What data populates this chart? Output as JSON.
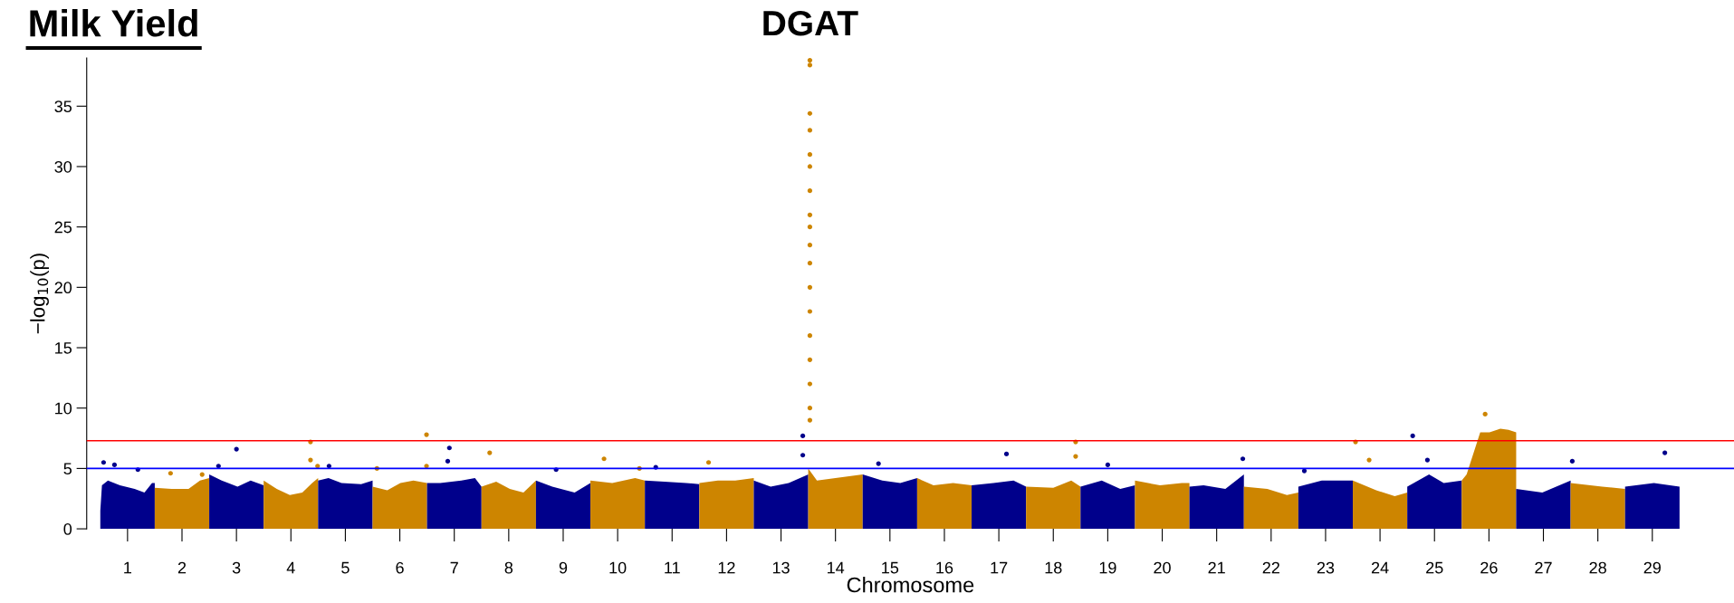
{
  "chart_data": {
    "type": "area",
    "title": "Milk Yield",
    "xlabel": "Chromosome",
    "ylabel": "−log$_{10}$(p)",
    "annotations": [
      {
        "text": "DGAT",
        "x": 13.53,
        "y": 38.8
      }
    ],
    "xlim": [
      0.25,
      30.5
    ],
    "ylim": [
      0,
      39
    ],
    "yticks": [
      0,
      5,
      10,
      15,
      20,
      25,
      30,
      35
    ],
    "xticks": [
      1,
      2,
      3,
      4,
      5,
      6,
      7,
      8,
      9,
      10,
      11,
      12,
      13,
      14,
      15,
      16,
      17,
      18,
      19,
      20,
      21,
      22,
      23,
      24,
      25,
      26,
      27,
      28,
      29
    ],
    "grid": false,
    "ref_lines": [
      {
        "axis": "y",
        "value": 7.3,
        "color": "#ff0000"
      },
      {
        "axis": "y",
        "value": 5,
        "color": "#0000ff"
      }
    ],
    "series": [
      {
        "color": "#00008b",
        "x": [
          0.5,
          0.53,
          0.64,
          0.86,
          1.13,
          1.31,
          1.45,
          1.5
        ],
        "values": [
          1.5,
          3.6,
          4.0,
          3.6,
          3.3,
          3.0,
          3.8,
          3.8
        ]
      },
      {
        "color": "#cd8500",
        "x": [
          1.5,
          1.81,
          2.12,
          2.33,
          2.5
        ],
        "values": [
          3.4,
          3.3,
          3.3,
          4.0,
          4.2
        ]
      },
      {
        "color": "#00008b",
        "x": [
          2.5,
          2.73,
          3.02,
          3.26,
          3.5
        ],
        "values": [
          4.5,
          4.0,
          3.5,
          4.0,
          3.6
        ]
      },
      {
        "color": "#cd8500",
        "x": [
          3.5,
          3.74,
          3.98,
          4.21,
          4.39,
          4.5
        ],
        "values": [
          4.0,
          3.3,
          2.8,
          3.0,
          3.8,
          4.2
        ]
      },
      {
        "color": "#00008b",
        "x": [
          4.5,
          4.69,
          4.93,
          5.29,
          5.5
        ],
        "values": [
          4.0,
          4.2,
          3.8,
          3.7,
          4.0
        ]
      },
      {
        "color": "#cd8500",
        "x": [
          5.5,
          5.77,
          6.01,
          6.25,
          6.5
        ],
        "values": [
          3.5,
          3.2,
          3.8,
          4.0,
          3.8
        ]
      },
      {
        "color": "#00008b",
        "x": [
          6.5,
          6.74,
          7.13,
          7.38,
          7.5
        ],
        "values": [
          3.8,
          3.8,
          4.0,
          4.2,
          3.5
        ]
      },
      {
        "color": "#cd8500",
        "x": [
          7.5,
          7.77,
          8.02,
          8.27,
          8.5
        ],
        "values": [
          3.5,
          3.9,
          3.3,
          3.0,
          4.0
        ]
      },
      {
        "color": "#00008b",
        "x": [
          8.5,
          8.8,
          9.21,
          9.5
        ],
        "values": [
          4.0,
          3.5,
          3.0,
          3.8
        ]
      },
      {
        "color": "#cd8500",
        "x": [
          9.5,
          9.9,
          10.32,
          10.5
        ],
        "values": [
          4.0,
          3.8,
          4.2,
          4.0
        ]
      },
      {
        "color": "#00008b",
        "x": [
          10.5,
          10.86,
          11.26,
          11.5
        ],
        "values": [
          4.0,
          3.9,
          3.8,
          3.7
        ]
      },
      {
        "color": "#cd8500",
        "x": [
          11.5,
          11.84,
          12.16,
          12.5
        ],
        "values": [
          3.8,
          4.0,
          4.0,
          4.2
        ]
      },
      {
        "color": "#00008b",
        "x": [
          12.5,
          12.81,
          13.14,
          13.5
        ],
        "values": [
          4.0,
          3.5,
          3.8,
          4.5
        ]
      },
      {
        "color": "#cd8500",
        "x": [
          13.5,
          13.66,
          14.0,
          14.5
        ],
        "values": [
          5.0,
          4.0,
          4.2,
          4.5
        ]
      },
      {
        "color": "#00008b",
        "x": [
          14.5,
          14.86,
          15.19,
          15.5
        ],
        "values": [
          4.5,
          4.0,
          3.8,
          4.2
        ]
      },
      {
        "color": "#cd8500",
        "x": [
          15.5,
          15.8,
          16.16,
          16.5
        ],
        "values": [
          4.2,
          3.6,
          3.8,
          3.6
        ]
      },
      {
        "color": "#00008b",
        "x": [
          16.5,
          16.9,
          17.27,
          17.5
        ],
        "values": [
          3.6,
          3.8,
          4.0,
          3.5
        ]
      },
      {
        "color": "#cd8500",
        "x": [
          17.5,
          18.0,
          18.33,
          18.5
        ],
        "values": [
          3.5,
          3.4,
          4.0,
          3.5
        ]
      },
      {
        "color": "#00008b",
        "x": [
          18.5,
          18.89,
          19.23,
          19.5
        ],
        "values": [
          3.5,
          4.0,
          3.3,
          3.6
        ]
      },
      {
        "color": "#cd8500",
        "x": [
          19.5,
          19.96,
          20.36,
          20.5
        ],
        "values": [
          4.0,
          3.6,
          3.8,
          3.8
        ]
      },
      {
        "color": "#00008b",
        "x": [
          20.5,
          20.76,
          21.16,
          21.5
        ],
        "values": [
          3.5,
          3.6,
          3.3,
          4.5
        ]
      },
      {
        "color": "#cd8500",
        "x": [
          21.5,
          21.93,
          22.29,
          22.5
        ],
        "values": [
          3.5,
          3.3,
          2.8,
          3.0
        ]
      },
      {
        "color": "#00008b",
        "x": [
          22.5,
          22.93,
          23.5
        ],
        "values": [
          3.5,
          4.0,
          4.0
        ]
      },
      {
        "color": "#cd8500",
        "x": [
          23.5,
          23.93,
          24.27,
          24.5
        ],
        "values": [
          4.0,
          3.2,
          2.7,
          3.0
        ]
      },
      {
        "color": "#00008b",
        "x": [
          24.5,
          24.9,
          25.17,
          25.5
        ],
        "values": [
          3.5,
          4.5,
          3.8,
          4.0
        ]
      },
      {
        "color": "#cd8500",
        "x": [
          25.5,
          25.59,
          25.84,
          26.01,
          26.21,
          26.36,
          26.5
        ],
        "values": [
          4.0,
          4.5,
          8.0,
          8.0,
          8.3,
          8.2,
          8.0
        ]
      },
      {
        "color": "#00008b",
        "x": [
          26.5,
          26.98,
          27.5
        ],
        "values": [
          3.3,
          3.0,
          4.0
        ]
      },
      {
        "color": "#cd8500",
        "x": [
          27.5,
          28.08,
          28.5
        ],
        "values": [
          3.8,
          3.5,
          3.3
        ]
      },
      {
        "color": "#00008b",
        "x": [
          28.5,
          29.03,
          29.5
        ],
        "values": [
          3.5,
          3.8,
          3.5
        ]
      },
      {
        "type": "scatter",
        "marker": "circle",
        "color": "#00008b",
        "x": [
          0.56,
          0.76,
          1.19,
          3.0,
          2.67,
          4.7,
          6.91,
          6.88,
          8.87,
          10.7,
          13.4,
          13.4,
          14.79,
          17.14,
          19.0,
          21.48,
          22.61,
          24.6,
          24.87,
          27.53,
          29.23
        ],
        "values": [
          5.5,
          5.3,
          4.9,
          6.6,
          5.2,
          5.2,
          6.7,
          5.6,
          4.9,
          5.1,
          7.7,
          6.1,
          5.4,
          6.2,
          5.3,
          5.8,
          4.8,
          7.7,
          5.7,
          5.6,
          6.3
        ]
      },
      {
        "type": "scatter",
        "marker": "circle",
        "color": "#cd8500",
        "x": [
          1.79,
          2.37,
          4.36,
          4.36,
          4.49,
          6.49,
          6.49,
          5.58,
          7.65,
          9.75,
          10.4,
          11.67,
          13.53,
          13.53,
          13.53,
          13.53,
          13.53,
          13.53,
          13.53,
          13.53,
          13.53,
          13.53,
          13.53,
          13.53,
          13.53,
          13.53,
          13.53,
          13.53,
          13.53,
          13.53,
          18.41,
          18.41,
          23.55,
          23.8,
          25.93
        ],
        "values": [
          4.6,
          4.5,
          7.2,
          5.7,
          5.2,
          7.8,
          5.2,
          5.0,
          6.3,
          5.8,
          5.0,
          5.5,
          38.8,
          38.4,
          34.4,
          33,
          31,
          30,
          28,
          26,
          25,
          23.5,
          22,
          20,
          18,
          16,
          14,
          12,
          10,
          9,
          7.2,
          6.0,
          7.2,
          5.7,
          9.5
        ]
      }
    ]
  }
}
